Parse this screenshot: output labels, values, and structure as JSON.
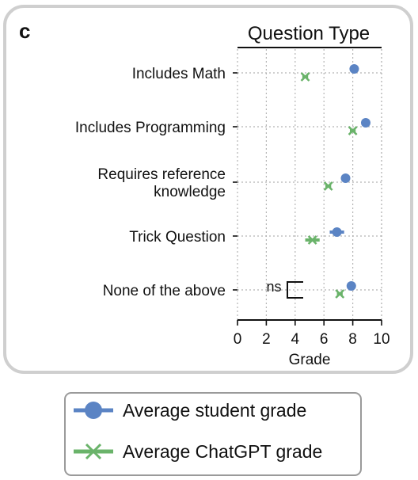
{
  "panel_letter": "c",
  "chart_data": {
    "type": "scatter",
    "title": "Question Type",
    "xlabel": "Grade",
    "ylabel": "",
    "xlim": [
      0,
      10
    ],
    "xticks": [
      0,
      2,
      4,
      6,
      8,
      10
    ],
    "grid": true,
    "orientation": "horizontal",
    "categories": [
      [
        "Includes Math"
      ],
      [
        "Includes Programming"
      ],
      [
        "Requires reference",
        "knowledge"
      ],
      [
        "Trick Question"
      ],
      [
        "None of the above"
      ]
    ],
    "series": [
      {
        "name": "Average student grade",
        "marker": "circle",
        "color": "#5b84c4",
        "values": [
          8.1,
          8.9,
          7.5,
          6.9,
          7.9
        ],
        "errors": [
          0.1,
          0.1,
          0.1,
          0.5,
          0.15
        ]
      },
      {
        "name": "Average ChatGPT grade",
        "marker": "x",
        "color": "#6ab36a",
        "values": [
          4.7,
          8.0,
          6.3,
          5.2,
          7.1
        ],
        "errors": [
          0.2,
          0.2,
          0.2,
          0.5,
          0.2
        ]
      }
    ],
    "annotations": [
      {
        "text": "ns",
        "category_index": 4
      }
    ],
    "legend": {
      "position": "bottom"
    }
  }
}
